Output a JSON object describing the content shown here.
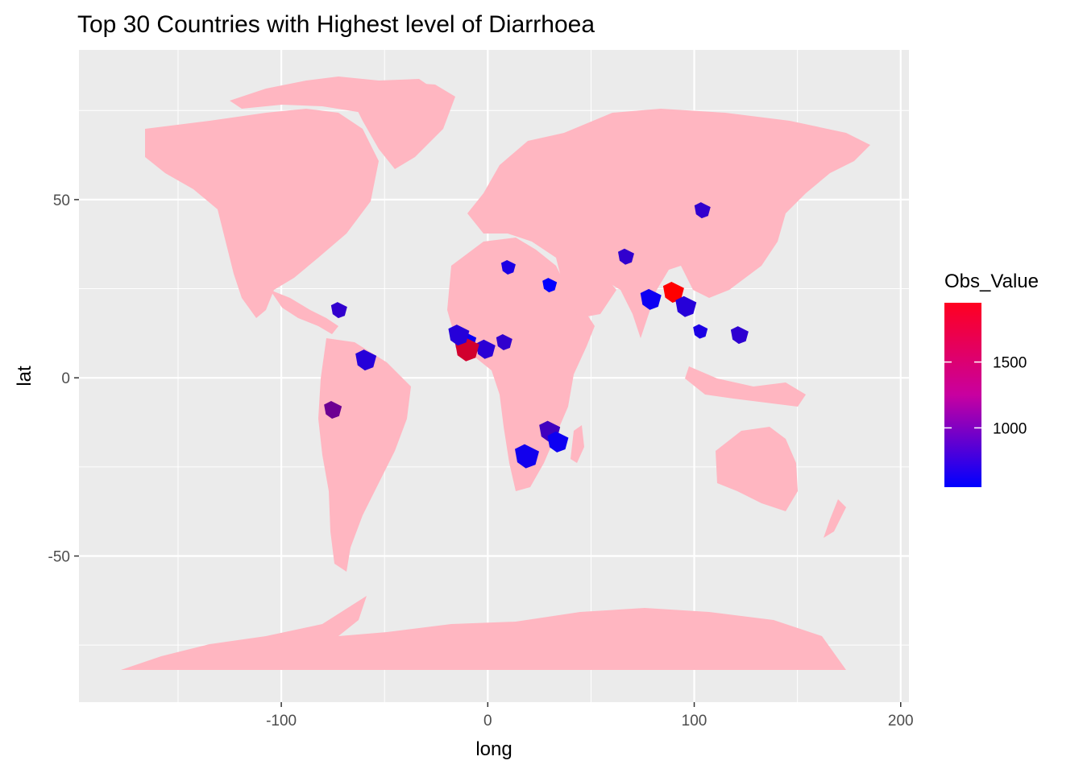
{
  "chart_data": {
    "type": "choropleth-map",
    "title": "Top 30 Countries with Highest level of Diarrhoea",
    "xlabel": "long",
    "ylabel": "lat",
    "x_ticks": [
      -100,
      0,
      100,
      200
    ],
    "y_ticks": [
      -50,
      0,
      50
    ],
    "xlim": [
      -198,
      204
    ],
    "ylim": [
      -91,
      92
    ],
    "grid": true,
    "legend": {
      "title": "Obs_Value",
      "placement": "right",
      "ticks": [
        1000,
        1500
      ],
      "range": [
        550,
        1950
      ],
      "low_color": "#0000ff",
      "high_color": "#ff0000"
    },
    "base_fill": "#ffb6c1",
    "panel_background": "#ebebeb",
    "regions": [
      {
        "lon": 30,
        "lat": 26,
        "value": 560
      },
      {
        "lon": 79,
        "lat": 22,
        "value": 620
      },
      {
        "lon": 90,
        "lat": 24,
        "value": 1950
      },
      {
        "lon": 104,
        "lat": 47,
        "value": 820
      },
      {
        "lon": 67,
        "lat": 34,
        "value": 820
      },
      {
        "lon": 96,
        "lat": 20,
        "value": 760
      },
      {
        "lon": 103,
        "lat": 13,
        "value": 700
      },
      {
        "lon": 122,
        "lat": 12,
        "value": 800
      },
      {
        "lon": -75,
        "lat": -9,
        "value": 1150
      },
      {
        "lon": -59,
        "lat": 5,
        "value": 760
      },
      {
        "lon": -72,
        "lat": 19,
        "value": 820
      },
      {
        "lon": 8,
        "lat": 10,
        "value": 820
      },
      {
        "lon": -1,
        "lat": 8,
        "value": 780
      },
      {
        "lon": -11,
        "lat": 10,
        "value": 600
      },
      {
        "lon": -10,
        "lat": 8,
        "value": 1700
      },
      {
        "lon": 30,
        "lat": -15,
        "value": 900
      },
      {
        "lon": 34,
        "lat": -18,
        "value": 620
      },
      {
        "lon": 19,
        "lat": -22,
        "value": 650
      },
      {
        "lon": 10,
        "lat": 31,
        "value": 700
      },
      {
        "lon": -14,
        "lat": 12,
        "value": 760
      }
    ]
  }
}
